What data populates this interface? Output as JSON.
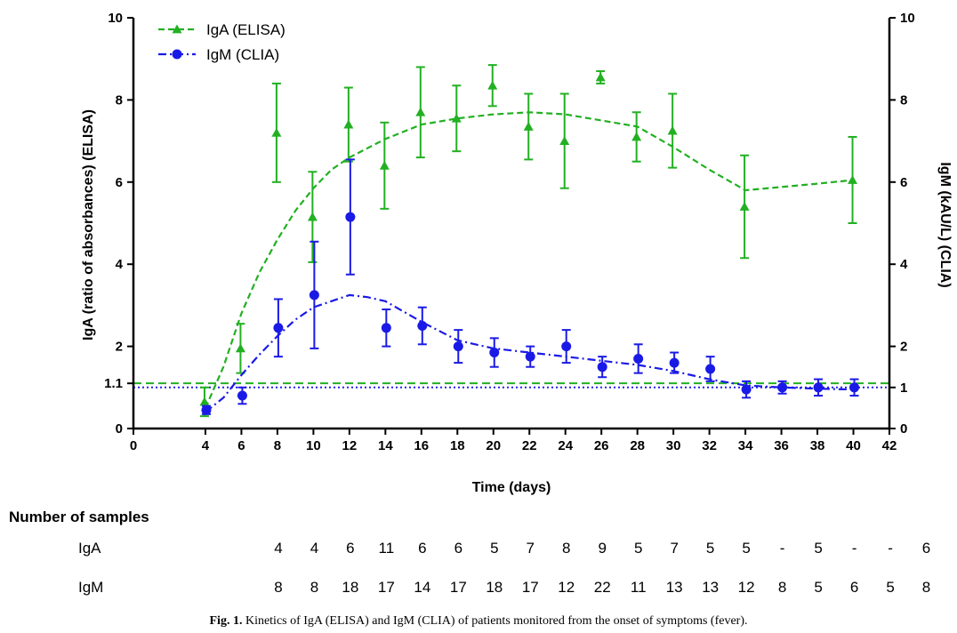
{
  "chart_data": {
    "type": "line",
    "xlabel": "Time (days)",
    "ylabel_left": "IgA (ratio of absorbances) (ELISA)",
    "ylabel_right": "IgM (kAU/L) (CLIA)",
    "xlim": [
      0,
      42
    ],
    "ylim": [
      0,
      10
    ],
    "x_ticks": [
      "0",
      "4",
      "6",
      "8",
      "10",
      "12",
      "14",
      "16",
      "18",
      "20",
      "22",
      "24",
      "26",
      "28",
      "30",
      "32",
      "34",
      "36",
      "38",
      "40",
      "42"
    ],
    "y_ticks_left": [
      "0",
      "1.1",
      "2",
      "4",
      "6",
      "8",
      "10"
    ],
    "y_ticks_right": [
      "0",
      "1",
      "2",
      "4",
      "6",
      "8",
      "10"
    ],
    "cutoffs": [
      {
        "series": "IgA",
        "value": 1.1,
        "style": "dashed",
        "color": "#22b022"
      },
      {
        "series": "IgM",
        "value": 1.0,
        "style": "dotted",
        "color": "#2222ee"
      }
    ],
    "series": [
      {
        "name": "IgA (ELISA)",
        "color": "#22b022",
        "marker": "triangle",
        "x": [
          4,
          6,
          8,
          10,
          12,
          14,
          16,
          18,
          20,
          22,
          24,
          26,
          28,
          30,
          34,
          40
        ],
        "y": [
          0.65,
          1.95,
          7.2,
          5.15,
          7.4,
          6.4,
          7.7,
          7.55,
          8.35,
          7.35,
          7.0,
          8.55,
          7.1,
          7.25,
          5.4,
          6.05
        ],
        "err": [
          0.35,
          0.6,
          1.2,
          1.1,
          0.9,
          1.05,
          1.1,
          0.8,
          0.5,
          0.8,
          1.15,
          0.15,
          0.6,
          0.9,
          1.25,
          1.05
        ],
        "fit_x": [
          4,
          5,
          6,
          7,
          8,
          9,
          10,
          11,
          12,
          14,
          16,
          18,
          20,
          22,
          24,
          26,
          28,
          30,
          32,
          34,
          36,
          38,
          40
        ],
        "fit_y": [
          0.5,
          1.5,
          2.8,
          3.8,
          4.6,
          5.3,
          5.85,
          6.3,
          6.6,
          7.05,
          7.4,
          7.55,
          7.65,
          7.7,
          7.65,
          7.5,
          7.35,
          6.85,
          6.3,
          5.8,
          5.88,
          5.96,
          6.05
        ]
      },
      {
        "name": "IgM (CLIA)",
        "color": "#1a1ae6",
        "marker": "circle",
        "x": [
          4,
          6,
          8,
          10,
          12,
          14,
          16,
          18,
          20,
          22,
          24,
          26,
          28,
          30,
          32,
          34,
          36,
          38,
          40
        ],
        "y": [
          0.45,
          0.8,
          2.45,
          3.25,
          5.15,
          2.45,
          2.5,
          2.0,
          1.85,
          1.75,
          2.0,
          1.5,
          1.7,
          1.6,
          1.45,
          0.95,
          1.0,
          1.0,
          1.0
        ],
        "err": [
          0.1,
          0.2,
          0.7,
          1.3,
          1.4,
          0.45,
          0.45,
          0.4,
          0.35,
          0.25,
          0.4,
          0.25,
          0.35,
          0.25,
          0.3,
          0.2,
          0.15,
          0.2,
          0.2
        ],
        "fit_x": [
          4,
          5,
          6,
          7,
          8,
          9,
          10,
          11,
          12,
          13,
          14,
          16,
          18,
          20,
          22,
          24,
          26,
          28,
          30,
          32,
          34,
          36,
          38,
          40
        ],
        "fit_y": [
          0.4,
          0.75,
          1.3,
          1.8,
          2.25,
          2.65,
          2.95,
          3.1,
          3.25,
          3.2,
          3.1,
          2.6,
          2.15,
          1.95,
          1.85,
          1.75,
          1.65,
          1.55,
          1.4,
          1.2,
          1.05,
          1.0,
          0.97,
          0.95
        ]
      }
    ]
  },
  "samples": {
    "title": "Number of samples",
    "rows": [
      {
        "label": "IgA",
        "values": [
          "4",
          "4",
          "6",
          "11",
          "6",
          "6",
          "5",
          "7",
          "8",
          "9",
          "5",
          "7",
          "5",
          "5",
          "-",
          "5",
          "-",
          "-",
          "6"
        ]
      },
      {
        "label": "IgM",
        "values": [
          "8",
          "8",
          "18",
          "17",
          "14",
          "17",
          "18",
          "17",
          "12",
          "22",
          "11",
          "13",
          "13",
          "12",
          "8",
          "5",
          "6",
          "5",
          "8"
        ]
      }
    ],
    "days": [
      4,
      6,
      8,
      10,
      12,
      14,
      16,
      18,
      20,
      22,
      24,
      26,
      28,
      30,
      32,
      34,
      36,
      38,
      40
    ]
  },
  "caption": {
    "label": "Fig. 1.",
    "text": " Kinetics of IgA (ELISA) and IgM (CLIA) of patients monitored from the onset of symptoms (fever)."
  }
}
